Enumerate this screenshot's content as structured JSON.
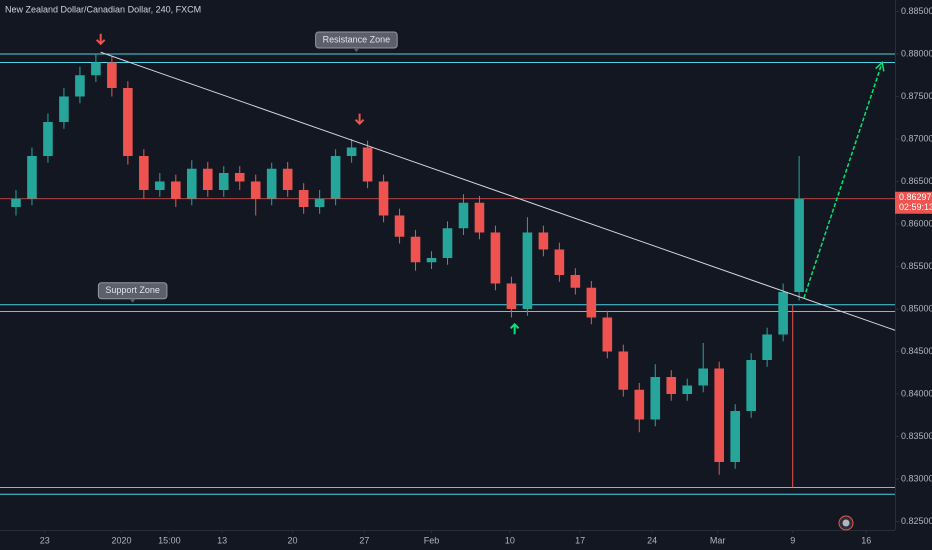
{
  "chart_data": {
    "type": "candlestick",
    "title": "New Zealand Dollar/Canadian Dollar, 240, FXCM",
    "x": [
      1,
      2,
      3,
      4,
      5,
      6,
      7,
      8,
      9,
      10,
      11,
      12,
      13,
      14,
      15,
      16,
      17,
      18,
      19,
      20,
      21,
      22,
      23,
      24,
      25,
      26,
      27,
      28,
      29,
      30,
      31,
      32,
      33,
      34,
      35,
      36,
      37,
      38,
      39,
      40,
      41,
      42,
      43,
      44,
      45,
      46,
      47,
      48,
      49,
      50
    ],
    "open": [
      0.862,
      0.863,
      0.868,
      0.872,
      0.875,
      0.8775,
      0.879,
      0.876,
      0.868,
      0.864,
      0.865,
      0.863,
      0.8665,
      0.864,
      0.866,
      0.865,
      0.863,
      0.8665,
      0.864,
      0.862,
      0.863,
      0.868,
      0.869,
      0.865,
      0.861,
      0.8585,
      0.8555,
      0.856,
      0.8595,
      0.8625,
      0.859,
      0.853,
      0.85,
      0.859,
      0.857,
      0.854,
      0.8525,
      0.849,
      0.845,
      0.8405,
      0.837,
      0.842,
      0.84,
      0.841,
      0.843,
      0.832,
      0.838,
      0.844,
      0.847,
      0.852
    ],
    "high": [
      0.864,
      0.869,
      0.873,
      0.876,
      0.8785,
      0.88,
      0.8798,
      0.8768,
      0.8688,
      0.866,
      0.8658,
      0.8675,
      0.8673,
      0.8668,
      0.8668,
      0.8658,
      0.8672,
      0.8673,
      0.8648,
      0.864,
      0.8688,
      0.87,
      0.8698,
      0.8658,
      0.8618,
      0.8593,
      0.8568,
      0.8603,
      0.8635,
      0.8633,
      0.8598,
      0.8538,
      0.8608,
      0.8598,
      0.8578,
      0.8548,
      0.8533,
      0.8498,
      0.8458,
      0.8413,
      0.8435,
      0.8428,
      0.8418,
      0.846,
      0.8438,
      0.8388,
      0.8448,
      0.8478,
      0.853,
      0.868
    ],
    "low": [
      0.861,
      0.8622,
      0.8672,
      0.8712,
      0.8742,
      0.8767,
      0.875,
      0.867,
      0.863,
      0.8632,
      0.862,
      0.8622,
      0.8632,
      0.8632,
      0.864,
      0.861,
      0.8622,
      0.8632,
      0.8612,
      0.8612,
      0.8622,
      0.8672,
      0.8642,
      0.8602,
      0.8577,
      0.8545,
      0.8547,
      0.8552,
      0.8587,
      0.8582,
      0.8522,
      0.849,
      0.8492,
      0.8562,
      0.8532,
      0.8517,
      0.8482,
      0.8442,
      0.8397,
      0.8355,
      0.8362,
      0.8392,
      0.8392,
      0.8402,
      0.8305,
      0.8312,
      0.8372,
      0.8432,
      0.8462,
      0.851
    ],
    "close": [
      0.863,
      0.868,
      0.872,
      0.875,
      0.8775,
      0.879,
      0.876,
      0.868,
      0.864,
      0.865,
      0.863,
      0.8665,
      0.864,
      0.866,
      0.865,
      0.863,
      0.8665,
      0.864,
      0.862,
      0.863,
      0.868,
      0.869,
      0.865,
      0.861,
      0.8585,
      0.8555,
      0.856,
      0.8595,
      0.8625,
      0.859,
      0.853,
      0.85,
      0.859,
      0.857,
      0.854,
      0.8525,
      0.849,
      0.845,
      0.8405,
      0.837,
      0.842,
      0.84,
      0.841,
      0.843,
      0.832,
      0.838,
      0.844,
      0.847,
      0.852,
      0.863
    ],
    "up_color": "#26a69a",
    "down_color": "#ef5350",
    "xlim": [
      0,
      56
    ],
    "xticks": [
      {
        "value": 2.8,
        "label": "23"
      },
      {
        "value": 7.6,
        "label": "2020"
      },
      {
        "value": 10.6,
        "label": "15:00"
      },
      {
        "value": 13.9,
        "label": "13"
      },
      {
        "value": 18.3,
        "label": "20"
      },
      {
        "value": 22.8,
        "label": "27"
      },
      {
        "value": 27,
        "label": "Feb"
      },
      {
        "value": 31.9,
        "label": "10"
      },
      {
        "value": 36.3,
        "label": "17"
      },
      {
        "value": 40.8,
        "label": "24"
      },
      {
        "value": 44.9,
        "label": "Mar"
      },
      {
        "value": 49.6,
        "label": "9"
      },
      {
        "value": 54.2,
        "label": "16"
      }
    ],
    "ylim": [
      0.824,
      0.88635
    ],
    "yticks": [
      {
        "value": 0.825,
        "label": "0.82500"
      },
      {
        "value": 0.83,
        "label": "0.83000"
      },
      {
        "value": 0.835,
        "label": "0.83500"
      },
      {
        "value": 0.84,
        "label": "0.84000"
      },
      {
        "value": 0.845,
        "label": "0.84500"
      },
      {
        "value": 0.85,
        "label": "0.85000"
      },
      {
        "value": 0.855,
        "label": "0.85500"
      },
      {
        "value": 0.86,
        "label": "0.86000"
      },
      {
        "value": 0.865,
        "label": "0.86500"
      },
      {
        "value": 0.87,
        "label": "0.87000"
      },
      {
        "value": 0.875,
        "label": "0.87500"
      },
      {
        "value": 0.88,
        "label": "0.88000"
      },
      {
        "value": 0.885,
        "label": "0.88500"
      }
    ],
    "grid": false,
    "levels": [
      {
        "value": 0.88,
        "color": "#4dd0e1"
      },
      {
        "value": 0.879,
        "color": "#4dd0e1"
      },
      {
        "value": 0.8505,
        "color": "#4dd0e1"
      },
      {
        "value": 0.8497,
        "color": "#4dd0e1"
      },
      {
        "value": 0.829,
        "color": "#4dd0e1"
      },
      {
        "value": 0.8282,
        "color": "#4dd0e1"
      }
    ],
    "last_price": 0.86297,
    "last_price_color": "#ef5350",
    "countdown": "02:59:13",
    "trend_line": {
      "x": [
        6.3,
        56
      ],
      "y": [
        0.8802,
        0.8475
      ],
      "color": "#d1d4dc"
    },
    "projection": {
      "x": [
        50.3,
        55.2
      ],
      "y": [
        0.8513,
        0.879
      ],
      "color": "#00e676"
    },
    "vline": {
      "x": 49.6,
      "y": [
        0.8505,
        0.829
      ],
      "color": "#ef5350"
    },
    "markers": [
      {
        "x": 6.3,
        "y": 0.8812,
        "direction": "down",
        "color": "#ef5350"
      },
      {
        "x": 22.5,
        "y": 0.8718,
        "direction": "down",
        "color": "#ef5350"
      },
      {
        "x": 32.2,
        "y": 0.8482,
        "direction": "up",
        "color": "#00e676"
      }
    ],
    "annotations": [
      {
        "text": "Resistance Zone",
        "x": 22.3,
        "y": 0.88
      },
      {
        "text": "Support Zone",
        "x": 8.3,
        "y": 0.8505
      }
    ]
  }
}
